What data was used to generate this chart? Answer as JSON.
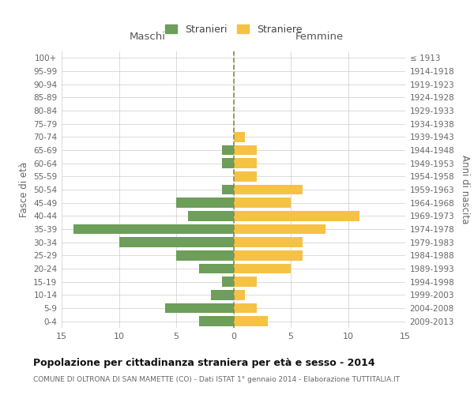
{
  "age_groups": [
    "0-4",
    "5-9",
    "10-14",
    "15-19",
    "20-24",
    "25-29",
    "30-34",
    "35-39",
    "40-44",
    "45-49",
    "50-54",
    "55-59",
    "60-64",
    "65-69",
    "70-74",
    "75-79",
    "80-84",
    "85-89",
    "90-94",
    "95-99",
    "100+"
  ],
  "birth_years": [
    "2009-2013",
    "2004-2008",
    "1999-2003",
    "1994-1998",
    "1989-1993",
    "1984-1988",
    "1979-1983",
    "1974-1978",
    "1969-1973",
    "1964-1968",
    "1959-1963",
    "1954-1958",
    "1949-1953",
    "1944-1948",
    "1939-1943",
    "1934-1938",
    "1929-1933",
    "1924-1928",
    "1919-1923",
    "1914-1918",
    "≤ 1913"
  ],
  "males": [
    3,
    6,
    2,
    1,
    3,
    5,
    10,
    14,
    4,
    5,
    1,
    0,
    1,
    1,
    0,
    0,
    0,
    0,
    0,
    0,
    0
  ],
  "females": [
    3,
    2,
    1,
    2,
    5,
    6,
    6,
    8,
    11,
    5,
    6,
    2,
    2,
    2,
    1,
    0,
    0,
    0,
    0,
    0,
    0
  ],
  "male_color": "#6d9e5a",
  "female_color": "#f5c244",
  "grid_color": "#cccccc",
  "dashed_line_color": "#8b8b4e",
  "title": "Popolazione per cittadinanza straniera per età e sesso - 2014",
  "subtitle": "COMUNE DI OLTRONA DI SAN MAMETTE (CO) - Dati ISTAT 1° gennaio 2014 - Elaborazione TUTTITALIA.IT",
  "header_left": "Maschi",
  "header_right": "Femmine",
  "ylabel_left": "Fasce di età",
  "ylabel_right": "Anni di nascita",
  "legend_male": "Stranieri",
  "legend_female": "Straniere",
  "xlim": 15,
  "background_color": "#ffffff",
  "bar_height": 0.75
}
